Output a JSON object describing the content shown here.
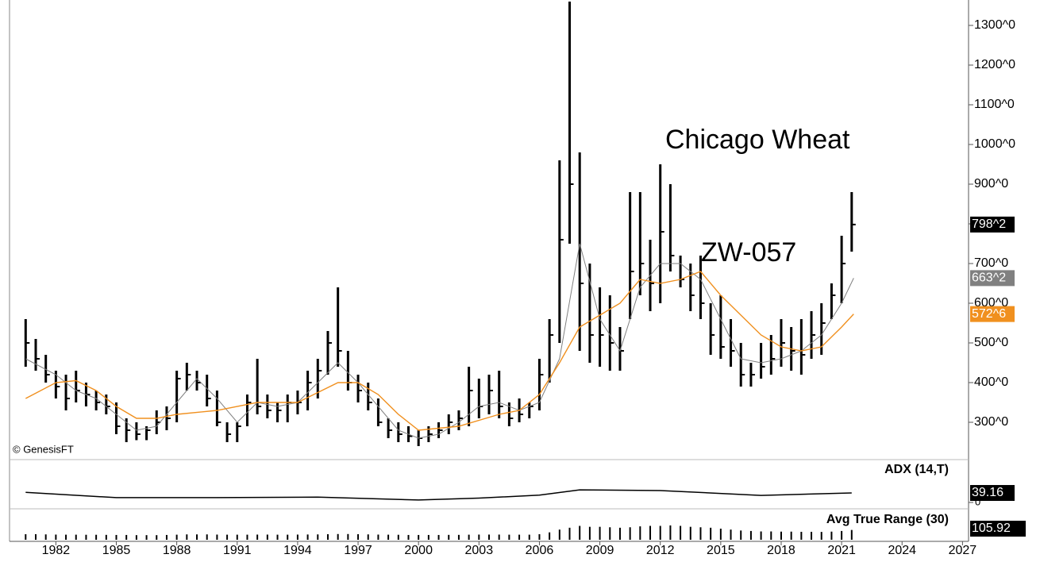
{
  "chart_data": {
    "type": "ohlc",
    "title": "Chicago Wheat",
    "subtitle": "ZW-057",
    "credit": "© GenesisFT",
    "x": [
      1980.5,
      1981,
      1981.5,
      1982,
      1982.5,
      1983,
      1983.5,
      1984,
      1984.5,
      1985,
      1985.5,
      1986,
      1986.5,
      1987,
      1987.5,
      1988,
      1988.5,
      1989,
      1989.5,
      1990,
      1990.5,
      1991,
      1991.5,
      1992,
      1992.5,
      1993,
      1993.5,
      1994,
      1994.5,
      1995,
      1995.5,
      1996,
      1996.5,
      1997,
      1997.5,
      1998,
      1998.5,
      1999,
      1999.5,
      2000,
      2000.5,
      2001,
      2001.5,
      2002,
      2002.5,
      2003,
      2003.5,
      2004,
      2004.5,
      2005,
      2005.5,
      2006,
      2006.5,
      2007,
      2007.5,
      2008,
      2008.5,
      2009,
      2009.5,
      2010,
      2010.5,
      2011,
      2011.5,
      2012,
      2012.5,
      2013,
      2013.5,
      2014,
      2014.5,
      2015,
      2015.5,
      2016,
      2016.5,
      2017,
      2017.5,
      2018,
      2018.5,
      2019,
      2019.5,
      2020,
      2020.5,
      2021,
      2021.5
    ],
    "high": [
      560,
      510,
      470,
      430,
      420,
      430,
      400,
      380,
      370,
      350,
      310,
      300,
      290,
      330,
      340,
      430,
      450,
      430,
      420,
      380,
      300,
      300,
      370,
      460,
      370,
      350,
      370,
      380,
      430,
      460,
      530,
      640,
      480,
      420,
      400,
      360,
      310,
      300,
      290,
      280,
      290,
      300,
      320,
      330,
      440,
      410,
      420,
      430,
      350,
      360,
      350,
      460,
      560,
      960,
      1360,
      980,
      700,
      640,
      620,
      540,
      880,
      880,
      760,
      950,
      900,
      720,
      700,
      720,
      600,
      620,
      560,
      500,
      450,
      500,
      520,
      560,
      540,
      560,
      580,
      600,
      650,
      770,
      880
    ],
    "low": [
      440,
      430,
      400,
      360,
      330,
      350,
      340,
      330,
      320,
      270,
      250,
      255,
      255,
      270,
      280,
      300,
      380,
      380,
      340,
      290,
      250,
      250,
      290,
      320,
      310,
      300,
      300,
      320,
      330,
      360,
      420,
      440,
      380,
      350,
      330,
      290,
      260,
      250,
      250,
      240,
      250,
      260,
      270,
      280,
      290,
      310,
      320,
      310,
      290,
      300,
      310,
      330,
      400,
      500,
      750,
      480,
      450,
      440,
      430,
      430,
      560,
      620,
      580,
      600,
      680,
      640,
      580,
      560,
      470,
      460,
      440,
      390,
      390,
      410,
      420,
      440,
      430,
      420,
      460,
      470,
      560,
      600,
      730
    ],
    "close": [
      500,
      460,
      420,
      390,
      360,
      380,
      370,
      350,
      340,
      290,
      280,
      270,
      280,
      300,
      310,
      410,
      420,
      400,
      360,
      300,
      270,
      290,
      350,
      340,
      330,
      330,
      350,
      350,
      400,
      430,
      500,
      480,
      400,
      380,
      350,
      300,
      280,
      270,
      265,
      260,
      270,
      280,
      300,
      310,
      380,
      340,
      380,
      340,
      310,
      320,
      340,
      420,
      520,
      760,
      900,
      650,
      520,
      520,
      500,
      480,
      680,
      700,
      650,
      780,
      720,
      660,
      620,
      600,
      520,
      490,
      480,
      420,
      420,
      440,
      460,
      500,
      480,
      470,
      520,
      550,
      620,
      700,
      798.25
    ],
    "color": "#000000",
    "last_price": {
      "value": 798.25,
      "label": "798^2"
    },
    "ylim": [
      208,
      1364
    ],
    "yticks": [
      {
        "value": 300,
        "label": "300^0"
      },
      {
        "value": 400,
        "label": "400^0"
      },
      {
        "value": 500,
        "label": "500^0"
      },
      {
        "value": 600,
        "label": "600^0"
      },
      {
        "value": 700,
        "label": "700^0"
      },
      {
        "value": 800,
        "label": "800^0"
      },
      {
        "value": 900,
        "label": "900^0"
      },
      {
        "value": 1000,
        "label": "1000^0"
      },
      {
        "value": 1100,
        "label": "1100^0"
      },
      {
        "value": 1200,
        "label": "1200^0"
      },
      {
        "value": 1300,
        "label": "1300^0"
      }
    ],
    "xlim": [
      1979.7,
      2027.3
    ],
    "xticks": [
      1982,
      1985,
      1988,
      1991,
      1994,
      1997,
      2000,
      2003,
      2006,
      2009,
      2012,
      2015,
      2018,
      2021,
      2024,
      2027
    ],
    "averages": [
      {
        "color": "#808080",
        "last": {
          "value": 663.25,
          "label": "663^2"
        },
        "x": [
          1980.5,
          1982,
          1983,
          1984,
          1985,
          1986,
          1987,
          1988,
          1989,
          1990,
          1991,
          1992,
          1993,
          1994,
          1995,
          1996,
          1997,
          1998,
          1999,
          2000,
          2001,
          2002,
          2003,
          2004,
          2005,
          2006,
          2007,
          2008,
          2009,
          2010,
          2011,
          2012,
          2013,
          2014,
          2015,
          2016,
          2017,
          2018,
          2019,
          2020,
          2021,
          2021.6
        ],
        "values": [
          460,
          420,
          380,
          360,
          320,
          280,
          290,
          350,
          410,
          360,
          300,
          350,
          340,
          350,
          400,
          450,
          400,
          340,
          280,
          260,
          270,
          300,
          340,
          350,
          330,
          350,
          460,
          750,
          560,
          480,
          640,
          700,
          700,
          660,
          560,
          460,
          450,
          460,
          480,
          520,
          600,
          663.25
        ]
      },
      {
        "color": "#f0901f",
        "last": {
          "value": 572.75,
          "label": "572^6"
        },
        "x": [
          1980.5,
          1982,
          1983,
          1984,
          1985,
          1986,
          1987,
          1988,
          1990,
          1992,
          1994,
          1996,
          1997,
          1998,
          1999,
          2000,
          2002,
          2004,
          2005,
          2006,
          2007,
          2008,
          2009,
          2010,
          2011,
          2012,
          2013,
          2014,
          2015,
          2016,
          2017,
          2018,
          2019,
          2020,
          2021,
          2021.6
        ],
        "values": [
          360,
          400,
          405,
          380,
          340,
          310,
          310,
          320,
          330,
          350,
          350,
          400,
          400,
          370,
          320,
          280,
          290,
          320,
          330,
          370,
          450,
          540,
          570,
          600,
          660,
          650,
          660,
          680,
          620,
          570,
          520,
          490,
          480,
          490,
          540,
          572.75
        ]
      }
    ],
    "adx": {
      "name": "ADX (14,T)",
      "color": "#000000",
      "ylim": [
        -23,
        167
      ],
      "yticks": [
        0
      ],
      "x": [
        1980.5,
        1985,
        1990,
        1995,
        2000,
        2003,
        2006,
        2008,
        2012,
        2017,
        2021.5
      ],
      "values": [
        42,
        20,
        20,
        22,
        10,
        18,
        30,
        52,
        49,
        29,
        39.16
      ]
    },
    "atr": {
      "name": "Avg True Range (30)",
      "color": "#000000",
      "ylim": [
        0,
        300
      ],
      "values": [
        60,
        60,
        58,
        56,
        55,
        55,
        54,
        54,
        53,
        52,
        52,
        50,
        50,
        50,
        52,
        55,
        58,
        58,
        58,
        56,
        55,
        55,
        55,
        56,
        56,
        55,
        55,
        56,
        57,
        58,
        60,
        62,
        62,
        60,
        58,
        56,
        55,
        54,
        52,
        52,
        52,
        52,
        53,
        53,
        55,
        56,
        56,
        56,
        55,
        55,
        55,
        60,
        80,
        110,
        130,
        150,
        140,
        140,
        135,
        130,
        135,
        145,
        150,
        150,
        155,
        150,
        140,
        135,
        130,
        120,
        110,
        100,
        95,
        90,
        90,
        88,
        88,
        86,
        86,
        85,
        88,
        95,
        105.92
      ]
    }
  }
}
